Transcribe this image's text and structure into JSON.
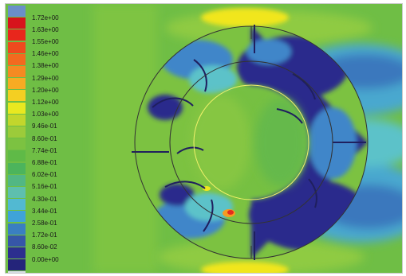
{
  "contour_legend": {
    "levels": [
      {
        "label": "1.72e+00",
        "color": "#d7141c"
      },
      {
        "label": "1.63e+00",
        "color": "#e8261c"
      },
      {
        "label": "1.55e+00",
        "color": "#ef4a1e"
      },
      {
        "label": "1.46e+00",
        "color": "#f26a1f"
      },
      {
        "label": "1.38e+00",
        "color": "#f58a22"
      },
      {
        "label": "1.29e+00",
        "color": "#f7ab23"
      },
      {
        "label": "1.20e+00",
        "color": "#f4cf22"
      },
      {
        "label": "1.12e+00",
        "color": "#e9e820"
      },
      {
        "label": "1.03e+00",
        "color": "#c2d62c"
      },
      {
        "label": "9.46e-01",
        "color": "#9ccb3a"
      },
      {
        "label": "8.60e-01",
        "color": "#7cc241"
      },
      {
        "label": "7.74e-01",
        "color": "#5fba47"
      },
      {
        "label": "6.88e-01",
        "color": "#4cb45c"
      },
      {
        "label": "6.02e-01",
        "color": "#52b784"
      },
      {
        "label": "5.16e-01",
        "color": "#5ebfae"
      },
      {
        "label": "4.30e-01",
        "color": "#52b9d2"
      },
      {
        "label": "3.44e-01",
        "color": "#3fa3d8"
      },
      {
        "label": "2.58e-01",
        "color": "#3a7fc1"
      },
      {
        "label": "1.72e-01",
        "color": "#3656a8"
      },
      {
        "label": "8.60e-02",
        "color": "#2c2f8f"
      },
      {
        "label": "0.00e+00",
        "color": "#24247a"
      }
    ],
    "top_color": "#6a8fc9",
    "bottom_color": "#d9dde8"
  },
  "colors": {
    "background": "#6fbe45",
    "deep_blue": "#2a2a8c",
    "mid_blue": "#3f86c9",
    "cyan": "#5cc2c9",
    "teal": "#56b98c",
    "light_green": "#92cb44",
    "yellow": "#f1e61e",
    "orange": "#f59b22",
    "red": "#e22b1e",
    "ring_line": "#333333",
    "inner_circle": "#f2f26a"
  }
}
